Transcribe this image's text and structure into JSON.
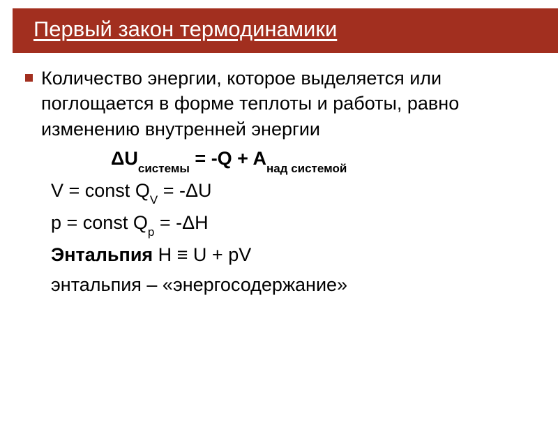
{
  "colors": {
    "title_bg": "#a22f1f",
    "title_text": "#ffffff",
    "body_text": "#000000",
    "bullet": "#a22f1f",
    "background": "#ffffff"
  },
  "typography": {
    "title_fontsize": 31,
    "body_fontsize": 27,
    "subscript_fontsize": 17,
    "font_family": "Arial"
  },
  "title": "Первый закон термодинамики",
  "bullet_paragraph": "Количество энергии, которое выделяется или поглощается в форме теплоты и работы, равно изменению внутренней энергии",
  "formula_main": {
    "lhs": "ΔU",
    "lhs_sub": "системы",
    "op": " = -Q + A",
    "rhs_sub": "над системой"
  },
  "line_v": {
    "prefix": "V = const ",
    "q": "Q",
    "q_sub": "V",
    "rest": " = -ΔU"
  },
  "line_p": {
    "prefix": "p = const ",
    "q": "Q",
    "q_sub": "p",
    "rest": " = -ΔH"
  },
  "line_enthalpy": {
    "label": "Энтальпия",
    "expr": " H ≡ U + pV"
  },
  "line_final": "энтальпия – «энергосодержание»"
}
